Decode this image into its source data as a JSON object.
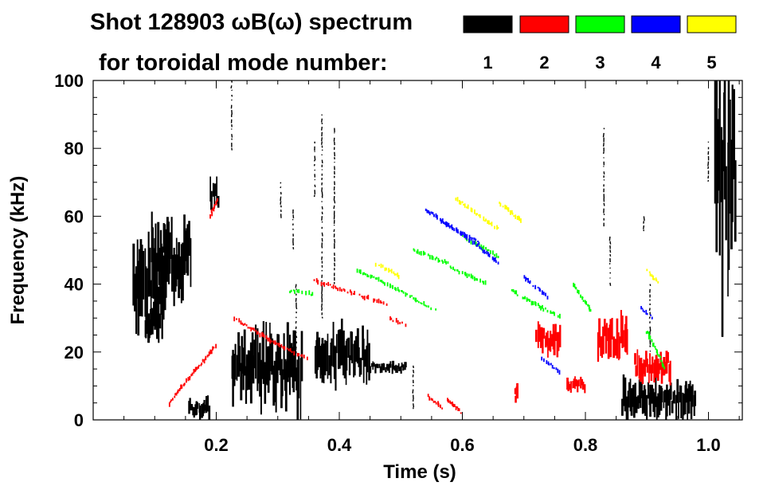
{
  "chart_data": {
    "type": "scatter",
    "title_line1": "Shot 128903 ωB(ω) spectrum",
    "title_line2": "for toroidal mode number:",
    "xlabel": "Time (s)",
    "ylabel": "Frequency (kHz)",
    "xlim": [
      0.0,
      1.055
    ],
    "ylim": [
      0,
      100
    ],
    "x_ticks": [
      0.2,
      0.4,
      0.6,
      0.8,
      1.0
    ],
    "x_tick_labels": [
      "0.2",
      "0.4",
      "0.6",
      "0.8",
      "1.0"
    ],
    "y_ticks": [
      0,
      20,
      40,
      60,
      80,
      100
    ],
    "y_tick_labels": [
      "0",
      "20",
      "40",
      "60",
      "80",
      "100"
    ],
    "grid": false,
    "legend_placement": "top-right",
    "legend": [
      {
        "label": "1",
        "color": "#000000"
      },
      {
        "label": "2",
        "color": "#ff0000"
      },
      {
        "label": "3",
        "color": "#00ff00"
      },
      {
        "label": "4",
        "color": "#0000ff"
      },
      {
        "label": "5",
        "color": "#ffff00"
      }
    ],
    "series": [
      {
        "mode": "1",
        "color": "#000000",
        "blobs": [
          {
            "x": [
              0.065,
              0.12
            ],
            "y": [
              28,
              52
            ]
          },
          {
            "x": [
              0.085,
              0.11
            ],
            "y": [
              24,
              34
            ]
          },
          {
            "x": [
              0.095,
              0.16
            ],
            "y": [
              38,
              58
            ]
          },
          {
            "x": [
              0.155,
              0.19
            ],
            "y": [
              1,
              6
            ]
          },
          {
            "x": [
              0.19,
              0.205
            ],
            "y": [
              62,
              71
            ]
          },
          {
            "x": [
              0.225,
              0.34
            ],
            "y": [
              5,
              24
            ]
          },
          {
            "x": [
              0.36,
              0.45
            ],
            "y": [
              12,
              26
            ]
          },
          {
            "x": [
              0.45,
              0.51
            ],
            "y": [
              14,
              17
            ]
          },
          {
            "x": [
              0.86,
              0.98
            ],
            "y": [
              1,
              11
            ]
          },
          {
            "x": [
              1.01,
              1.045
            ],
            "y": [
              40,
              100
            ]
          }
        ],
        "streaks": [
          {
            "x": 0.225,
            "y": [
              80,
              100
            ]
          },
          {
            "x": 0.372,
            "y": [
              30,
              90
            ]
          },
          {
            "x": 0.392,
            "y": [
              40,
              86
            ]
          },
          {
            "x": 0.325,
            "y": [
              50,
              62
            ]
          },
          {
            "x": 0.33,
            "y": [
              20,
              40
            ]
          },
          {
            "x": 0.305,
            "y": [
              60,
              70
            ]
          },
          {
            "x": 0.36,
            "y": [
              66,
              82
            ]
          },
          {
            "x": 0.52,
            "y": [
              3,
              16
            ]
          },
          {
            "x": 0.895,
            "y": [
              56,
              60
            ]
          },
          {
            "x": 0.83,
            "y": [
              58,
              86
            ]
          },
          {
            "x": 0.84,
            "y": [
              40,
              54
            ]
          },
          {
            "x": 1.0,
            "y": [
              70,
              82
            ]
          },
          {
            "x": 0.905,
            "y": [
              20,
              40
            ]
          }
        ]
      },
      {
        "mode": "2",
        "color": "#ff0000",
        "chirps": [
          {
            "x": [
              0.36,
              0.48
            ],
            "y": [
              41,
              34
            ]
          },
          {
            "x": [
              0.48,
              0.51
            ],
            "y": [
              30,
              28
            ]
          },
          {
            "x": [
              0.23,
              0.3
            ],
            "y": [
              30,
              22
            ]
          },
          {
            "x": [
              0.3,
              0.35
            ],
            "y": [
              22,
              18
            ]
          },
          {
            "x": [
              0.2,
              0.145
            ],
            "y": [
              22,
              10
            ]
          },
          {
            "x": [
              0.145,
              0.12
            ],
            "y": [
              10,
              4
            ]
          },
          {
            "x": [
              0.19,
              0.202
            ],
            "y": [
              60,
              65
            ]
          },
          {
            "x": [
              0.545,
              0.57
            ],
            "y": [
              7,
              3
            ]
          },
          {
            "x": [
              0.575,
              0.6
            ],
            "y": [
              6,
              2
            ]
          }
        ],
        "blobs": [
          {
            "x": [
              0.82,
              0.87
            ],
            "y": [
              18,
              30
            ]
          },
          {
            "x": [
              0.72,
              0.76
            ],
            "y": [
              20,
              28
            ]
          },
          {
            "x": [
              0.77,
              0.8
            ],
            "y": [
              8,
              12
            ]
          },
          {
            "x": [
              0.88,
              0.94
            ],
            "y": [
              12,
              20
            ]
          },
          {
            "x": [
              0.685,
              0.69
            ],
            "y": [
              5,
              10
            ]
          }
        ]
      },
      {
        "mode": "3",
        "color": "#00ff00",
        "chirps": [
          {
            "x": [
              0.32,
              0.36
            ],
            "y": [
              38,
              37
            ]
          },
          {
            "x": [
              0.43,
              0.5
            ],
            "y": [
              44,
              38
            ]
          },
          {
            "x": [
              0.5,
              0.56
            ],
            "y": [
              38,
              32
            ]
          },
          {
            "x": [
              0.52,
              0.58
            ],
            "y": [
              50,
              46
            ]
          },
          {
            "x": [
              0.58,
              0.64
            ],
            "y": [
              45,
              40
            ]
          },
          {
            "x": [
              0.6,
              0.66
            ],
            "y": [
              54,
              48
            ]
          },
          {
            "x": [
              0.68,
              0.76
            ],
            "y": [
              38,
              30
            ]
          },
          {
            "x": [
              0.78,
              0.81
            ],
            "y": [
              40,
              32
            ]
          },
          {
            "x": [
              0.9,
              0.93
            ],
            "y": [
              26,
              15
            ]
          }
        ]
      },
      {
        "mode": "4",
        "color": "#0000ff",
        "chirps": [
          {
            "x": [
              0.54,
              0.62
            ],
            "y": [
              62,
              52
            ]
          },
          {
            "x": [
              0.62,
              0.66
            ],
            "y": [
              52,
              46
            ]
          },
          {
            "x": [
              0.57,
              0.63
            ],
            "y": [
              58,
              52
            ]
          },
          {
            "x": [
              0.7,
              0.74
            ],
            "y": [
              42,
              36
            ]
          },
          {
            "x": [
              0.73,
              0.76
            ],
            "y": [
              18,
              14
            ]
          },
          {
            "x": [
              0.89,
              0.91
            ],
            "y": [
              33,
              30
            ]
          }
        ]
      },
      {
        "mode": "5",
        "color": "#ffff00",
        "chirps": [
          {
            "x": [
              0.59,
              0.66
            ],
            "y": [
              65,
              56
            ]
          },
          {
            "x": [
              0.66,
              0.7
            ],
            "y": [
              64,
              58
            ]
          },
          {
            "x": [
              0.46,
              0.5
            ],
            "y": [
              46,
              42
            ]
          },
          {
            "x": [
              0.9,
              0.92
            ],
            "y": [
              44,
              40
            ]
          }
        ]
      }
    ]
  }
}
